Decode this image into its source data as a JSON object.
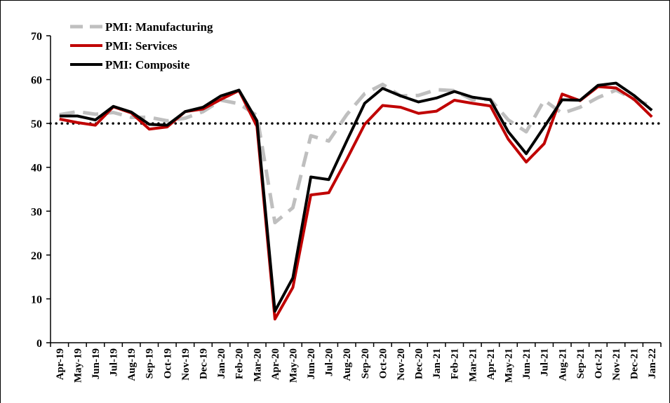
{
  "chart_data": {
    "type": "line",
    "categories": [
      "Apr-19",
      "May-19",
      "Jun-19",
      "Jul-19",
      "Aug-19",
      "Sep-19",
      "Oct-19",
      "Nov-19",
      "Dec-19",
      "Jan-20",
      "Feb-20",
      "Mar-20",
      "Apr-20",
      "May-20",
      "Jun-20",
      "Jul-20",
      "Aug-20",
      "Sep-20",
      "Oct-20",
      "Nov-20",
      "Dec-20",
      "Jan-21",
      "Feb-21",
      "Mar-21",
      "Apr-21",
      "May-21",
      "Jun-21",
      "Jul-21",
      "Aug-21",
      "Sep-21",
      "Oct-21",
      "Nov-21",
      "Dec-21",
      "Jan-22"
    ],
    "series": [
      {
        "name": "PMI: Manufacturing",
        "color": "#bfbfbf",
        "dash": "dashed",
        "values": [
          52.0,
          52.7,
          52.1,
          52.5,
          51.4,
          51.4,
          50.6,
          51.2,
          52.7,
          55.3,
          54.5,
          51.8,
          27.4,
          30.8,
          47.2,
          46.0,
          52.0,
          56.8,
          58.9,
          56.3,
          56.4,
          57.7,
          57.5,
          55.4,
          55.5,
          50.8,
          48.1,
          55.3,
          52.3,
          53.7,
          55.9,
          57.6,
          55.5,
          54.0
        ]
      },
      {
        "name": "PMI: Services",
        "color": "#c00000",
        "dash": "solid",
        "values": [
          51.0,
          50.2,
          49.6,
          53.8,
          52.4,
          48.7,
          49.2,
          52.7,
          53.3,
          55.5,
          57.5,
          49.3,
          5.4,
          12.6,
          33.7,
          34.2,
          41.8,
          49.8,
          54.1,
          53.7,
          52.3,
          52.8,
          55.3,
          54.6,
          54.0,
          46.4,
          41.2,
          45.4,
          56.7,
          55.2,
          58.4,
          58.1,
          55.5,
          51.5
        ]
      },
      {
        "name": "PMI: Composite",
        "color": "#000000",
        "dash": "solid",
        "values": [
          51.7,
          51.7,
          50.8,
          53.9,
          52.6,
          49.8,
          49.6,
          52.7,
          53.7,
          56.3,
          57.6,
          50.6,
          7.2,
          14.8,
          37.8,
          37.2,
          46.0,
          54.6,
          58.0,
          56.3,
          54.9,
          55.8,
          57.3,
          56.0,
          55.4,
          48.1,
          43.1,
          49.2,
          55.4,
          55.3,
          58.7,
          59.2,
          56.4,
          53.0
        ]
      }
    ],
    "reference_line": 50,
    "ylim": [
      0,
      70
    ],
    "yticks": [
      0,
      10,
      20,
      30,
      40,
      50,
      60,
      70
    ],
    "grid": false,
    "legend": "top-left"
  }
}
